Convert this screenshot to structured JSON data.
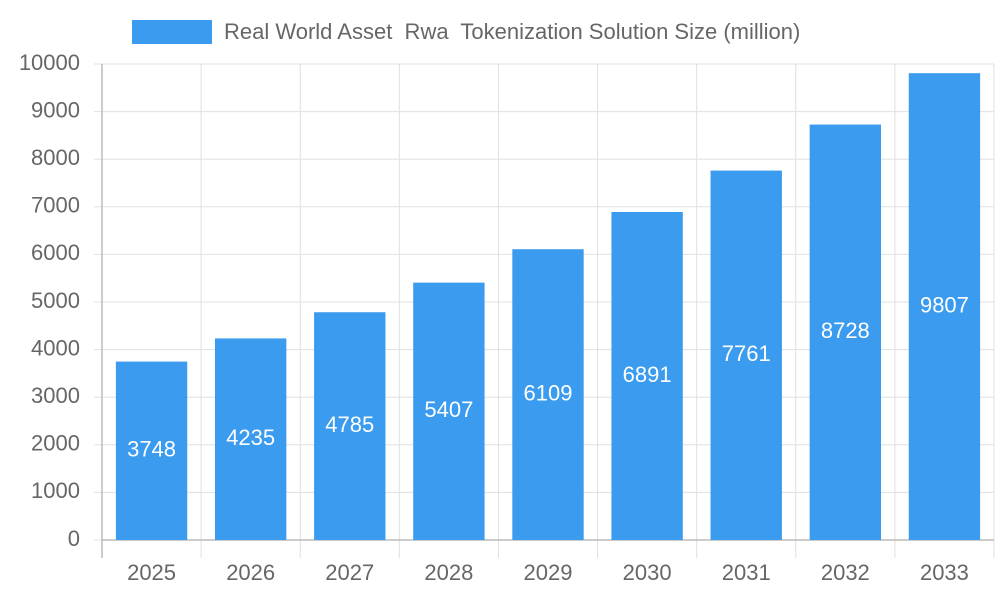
{
  "chart_data": {
    "type": "bar",
    "series": [
      {
        "name": "Real World Asset  Rwa  Tokenization Solution Size (million)",
        "color": "#3a9bef",
        "values": [
          3748,
          4235,
          4785,
          5407,
          6109,
          6891,
          7761,
          8728,
          9807
        ]
      }
    ],
    "categories": [
      "2025",
      "2026",
      "2027",
      "2028",
      "2029",
      "2030",
      "2031",
      "2032",
      "2033"
    ],
    "ylim": [
      0,
      10000
    ],
    "yticks": [
      0,
      1000,
      2000,
      3000,
      4000,
      5000,
      6000,
      7000,
      8000,
      9000,
      10000
    ],
    "grid": true,
    "legend": "top"
  }
}
